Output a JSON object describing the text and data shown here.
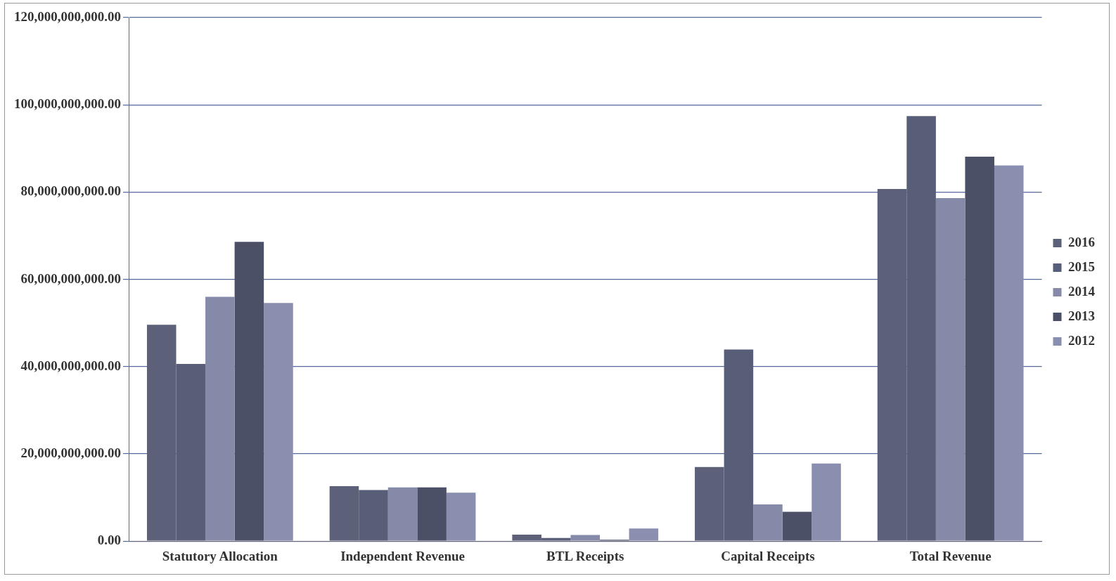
{
  "chart_data": {
    "type": "bar",
    "categories": [
      "Statutory Allocation",
      "Independent Revenue",
      "BTL Receipts",
      "Capital Receipts",
      "Total Revenue"
    ],
    "series": [
      {
        "name": "2016",
        "color": "#5c6079",
        "values": [
          49600000000,
          12600000000,
          1500000000,
          17000000000,
          80700000000
        ]
      },
      {
        "name": "2015",
        "color": "#585d78",
        "values": [
          40600000000,
          11700000000,
          700000000,
          43900000000,
          97400000000
        ]
      },
      {
        "name": "2014",
        "color": "#868aa9",
        "values": [
          56000000000,
          12300000000,
          1400000000,
          8400000000,
          78600000000
        ]
      },
      {
        "name": "2013",
        "color": "#4b5067",
        "values": [
          68600000000,
          12300000000,
          300000000,
          6700000000,
          88100000000
        ]
      },
      {
        "name": "2012",
        "color": "#8a8fb0",
        "values": [
          54600000000,
          11100000000,
          2900000000,
          17800000000,
          86100000000
        ]
      }
    ],
    "ylim": [
      0,
      120000000000
    ],
    "yticks": [
      {
        "value": 0,
        "label": "0.00"
      },
      {
        "value": 20000000000,
        "label": "20,000,000,000.00"
      },
      {
        "value": 40000000000,
        "label": "40,000,000,000.00"
      },
      {
        "value": 60000000000,
        "label": "60,000,000,000.00"
      },
      {
        "value": 80000000000,
        "label": "80,000,000,000.00"
      },
      {
        "value": 100000000000,
        "label": "100,000,000,000.00"
      },
      {
        "value": 120000000000,
        "label": "120,000,000,000.00"
      }
    ],
    "grid": "y",
    "legend": "right"
  }
}
